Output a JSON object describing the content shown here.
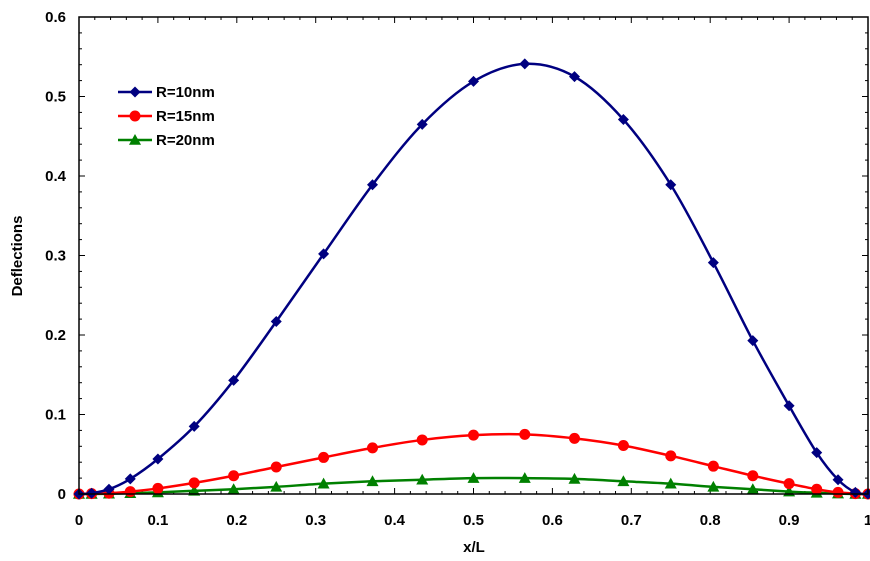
{
  "chart_data": {
    "type": "line",
    "title": "",
    "xlabel": "x/L",
    "ylabel": "Deflections",
    "xlim": [
      0,
      1
    ],
    "ylim": [
      0,
      0.6
    ],
    "x_ticks": [
      "0",
      "0.1",
      "0.2",
      "0.3",
      "0.4",
      "0.5",
      "0.6",
      "0.7",
      "0.8",
      "0.9",
      "1"
    ],
    "y_ticks": [
      "0",
      "0.1",
      "0.2",
      "0.3",
      "0.4",
      "0.5",
      "0.6"
    ],
    "grid": false,
    "legend_position": "top-left",
    "x": [
      0,
      0.016,
      0.038,
      0.065,
      0.1,
      0.146,
      0.196,
      0.25,
      0.31,
      0.372,
      0.435,
      0.5,
      0.565,
      0.628,
      0.69,
      0.75,
      0.804,
      0.854,
      0.9,
      0.935,
      0.962,
      0.984,
      1
    ],
    "series": [
      {
        "name": "R=10nm",
        "color": "#000080",
        "marker": "diamond",
        "values": [
          0,
          0.001,
          0.006,
          0.019,
          0.044,
          0.085,
          0.143,
          0.217,
          0.302,
          0.389,
          0.465,
          0.519,
          0.541,
          0.525,
          0.471,
          0.389,
          0.291,
          0.193,
          0.111,
          0.052,
          0.018,
          0.002,
          0
        ]
      },
      {
        "name": "R=15nm",
        "color": "#ff0000",
        "marker": "circle",
        "values": [
          0,
          0.0005,
          0.001,
          0.003,
          0.007,
          0.014,
          0.023,
          0.034,
          0.046,
          0.058,
          0.068,
          0.074,
          0.075,
          0.07,
          0.061,
          0.048,
          0.035,
          0.023,
          0.013,
          0.006,
          0.002,
          0.0005,
          0
        ]
      },
      {
        "name": "R=20nm",
        "color": "#008000",
        "marker": "triangle",
        "values": [
          0,
          0,
          0.0003,
          0.001,
          0.002,
          0.004,
          0.006,
          0.009,
          0.013,
          0.016,
          0.018,
          0.02,
          0.02,
          0.019,
          0.016,
          0.013,
          0.009,
          0.006,
          0.003,
          0.0015,
          0.0005,
          0,
          0
        ]
      }
    ]
  }
}
